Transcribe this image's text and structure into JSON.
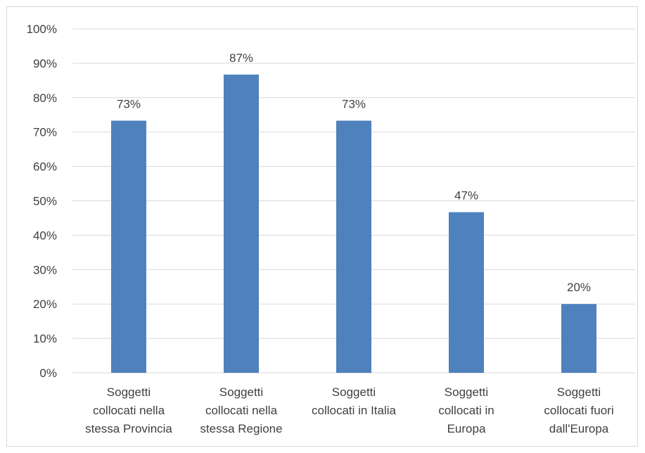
{
  "chart_data": {
    "type": "bar",
    "categories": [
      [
        "Soggetti",
        "collocati nella",
        "stessa Provincia"
      ],
      [
        "Soggetti",
        "collocati nella",
        "stessa Regione"
      ],
      [
        "Soggetti",
        "collocati in Italia"
      ],
      [
        "Soggetti",
        "collocati in",
        "Europa"
      ],
      [
        "Soggetti",
        "collocati fuori",
        "dall'Europa"
      ]
    ],
    "values": [
      73.3,
      86.7,
      73.3,
      46.7,
      20.0
    ],
    "data_labels": [
      "73%",
      "87%",
      "73%",
      "47%",
      "20%"
    ],
    "ylim": [
      0,
      100
    ],
    "yticks": [
      0,
      10,
      20,
      30,
      40,
      50,
      60,
      70,
      80,
      90,
      100
    ],
    "ytick_labels": [
      "0%",
      "10%",
      "20%",
      "30%",
      "40%",
      "50%",
      "60%",
      "70%",
      "80%",
      "90%",
      "100%"
    ],
    "grid": true,
    "legend": "none",
    "colors": {
      "bar": "#4f81bd",
      "grid": "#d9d9d9",
      "text": "#404040"
    }
  }
}
